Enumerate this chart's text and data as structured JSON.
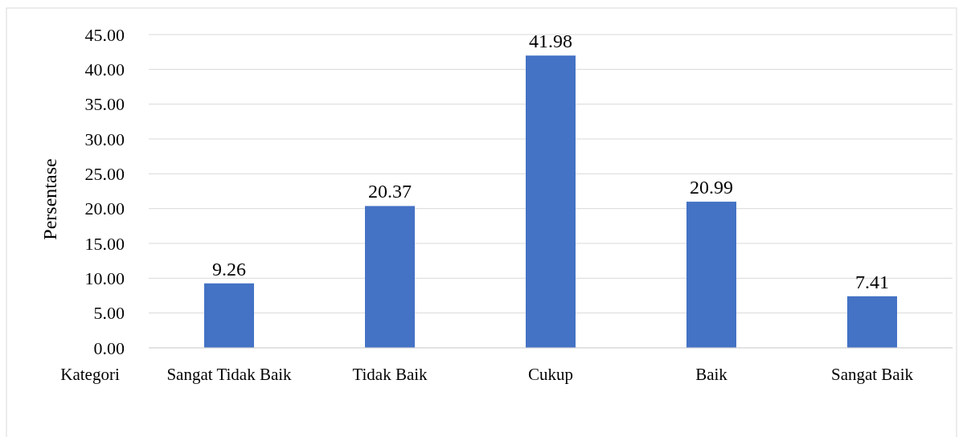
{
  "chart_data": {
    "type": "bar",
    "xlabel": "Kategori",
    "ylabel": "Persentase",
    "categories": [
      "Sangat Tidak Baik",
      "Tidak Baik",
      "Cukup",
      "Baik",
      "Sangat Baik"
    ],
    "values": [
      9.26,
      20.37,
      41.98,
      20.99,
      7.41
    ],
    "color": "#4472c4",
    "ylim": [
      0,
      45
    ],
    "yticks": [
      {
        "value": 0,
        "label": "0.00"
      },
      {
        "value": 5,
        "label": "5.00"
      },
      {
        "value": 10,
        "label": "10.00"
      },
      {
        "value": 15,
        "label": "15.00"
      },
      {
        "value": 20,
        "label": "20.00"
      },
      {
        "value": 25,
        "label": "25.00"
      },
      {
        "value": 30,
        "label": "30.00"
      },
      {
        "value": 35,
        "label": "35.00"
      },
      {
        "value": 40,
        "label": "40.00"
      },
      {
        "value": 45,
        "label": "45.00"
      }
    ],
    "grid": "y",
    "data_labels": true
  }
}
